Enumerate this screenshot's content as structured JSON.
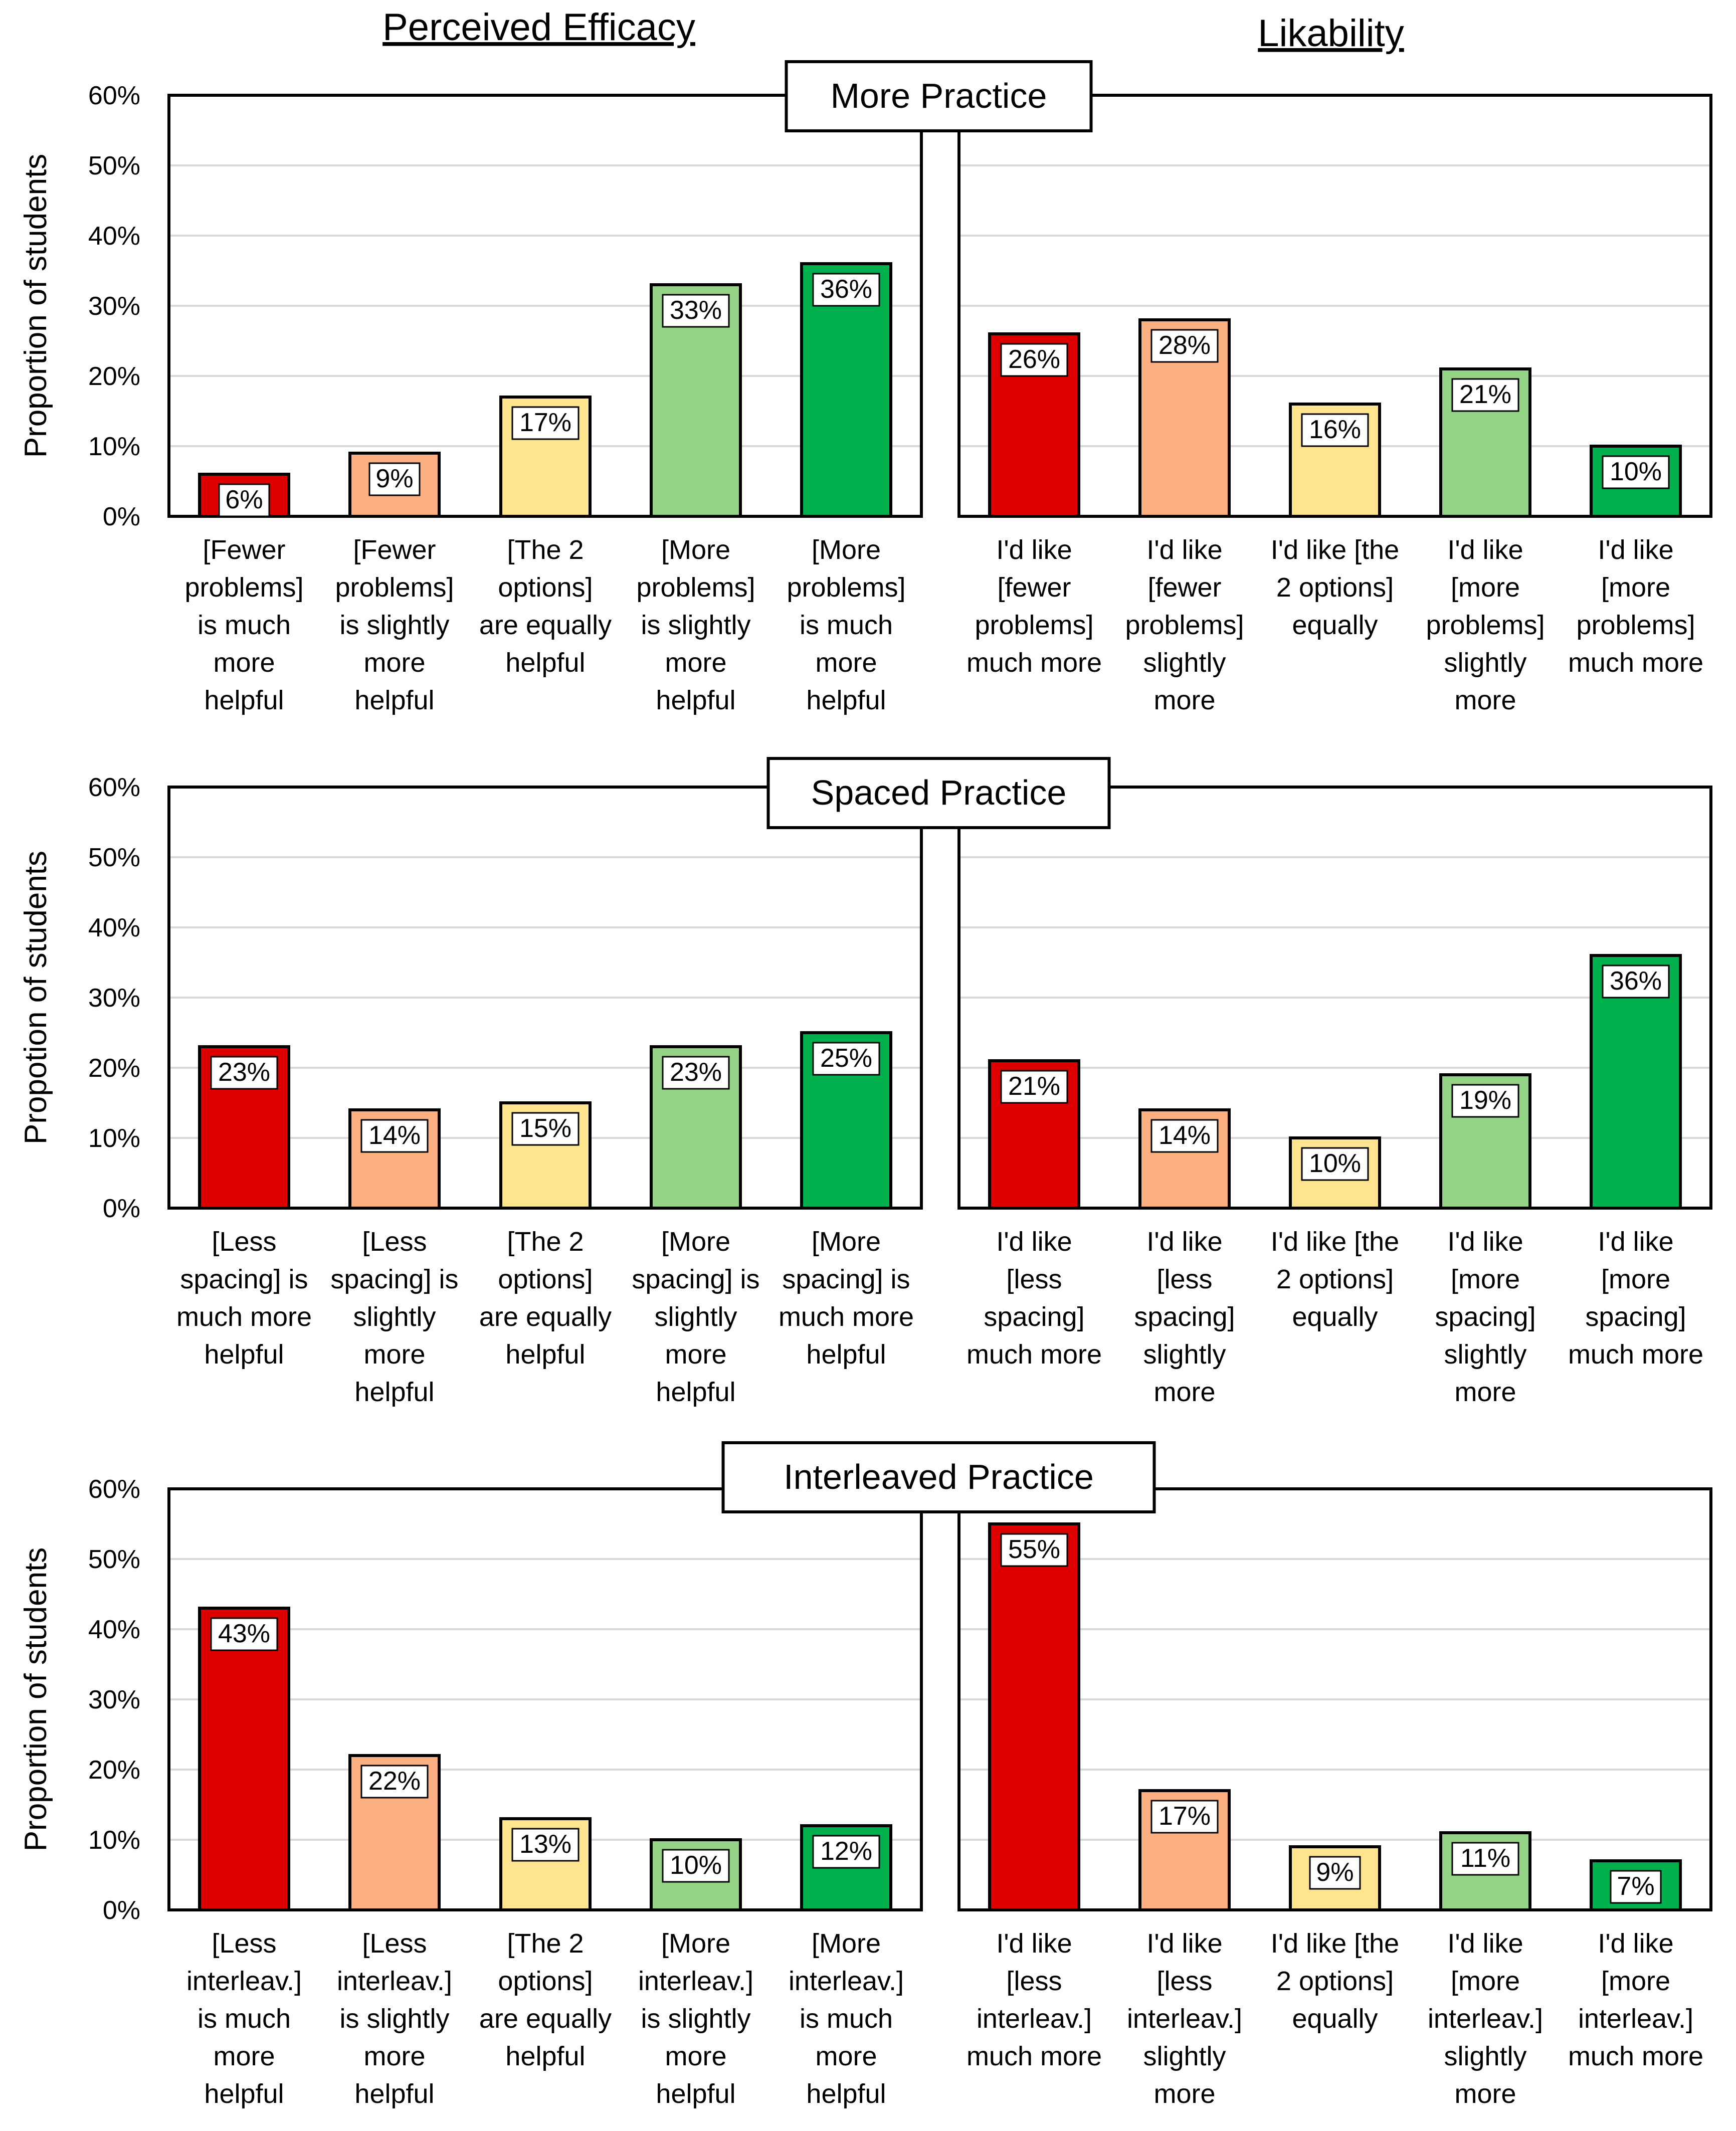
{
  "column_headers": {
    "left": "Perceived Efficacy",
    "right": "Likability"
  },
  "colors": {
    "bars": [
      "#DE0000",
      "#FCB081",
      "#FFE48F",
      "#95D387",
      "#00B04D"
    ],
    "grid": "#D9D9D9",
    "frame": "#000000"
  },
  "chart_data": [
    {
      "type": "bar",
      "panel_title": "More Practice",
      "ylabel": "Proportion of students",
      "ylim": [
        0,
        60
      ],
      "yticks": [
        "0%",
        "10%",
        "20%",
        "30%",
        "40%",
        "50%",
        "60%"
      ],
      "grid": true,
      "efficacy": {
        "categories": [
          [
            "[Fewer",
            "problems]",
            "is much",
            "more",
            "helpful"
          ],
          [
            "[Fewer",
            "problems]",
            "is slightly",
            "more",
            "helpful"
          ],
          [
            "[The 2",
            "options]",
            "are equally",
            "helpful"
          ],
          [
            "[More",
            "problems]",
            "is slightly",
            "more",
            "helpful"
          ],
          [
            "[More",
            "problems]",
            "is much",
            "more",
            "helpful"
          ]
        ],
        "values": [
          6,
          9,
          17,
          33,
          36
        ],
        "labels": [
          "6%",
          "9%",
          "17%",
          "33%",
          "36%"
        ]
      },
      "likability": {
        "categories": [
          [
            "I'd like",
            "[fewer",
            "problems]",
            "much more"
          ],
          [
            "I'd like",
            "[fewer",
            "problems]",
            "slightly",
            "more"
          ],
          [
            "I'd like [the",
            "2 options]",
            "equally"
          ],
          [
            "I'd like",
            "[more",
            "problems]",
            "slightly",
            "more"
          ],
          [
            "I'd like",
            "[more",
            "problems]",
            "much more"
          ]
        ],
        "values": [
          26,
          28,
          16,
          21,
          10
        ],
        "labels": [
          "26%",
          "28%",
          "16%",
          "21%",
          "10%"
        ]
      }
    },
    {
      "type": "bar",
      "panel_title": "Spaced Practice",
      "ylabel": "Propotion of students",
      "ylim": [
        0,
        60
      ],
      "yticks": [
        "0%",
        "10%",
        "20%",
        "30%",
        "40%",
        "50%",
        "60%"
      ],
      "grid": true,
      "efficacy": {
        "categories": [
          [
            "[Less",
            "spacing] is",
            "much more",
            "helpful"
          ],
          [
            "[Less",
            "spacing] is",
            "slightly",
            "more",
            "helpful"
          ],
          [
            "[The 2",
            "options]",
            "are equally",
            "helpful"
          ],
          [
            "[More",
            "spacing] is",
            "slightly",
            "more",
            "helpful"
          ],
          [
            "[More",
            "spacing] is",
            "much more",
            "helpful"
          ]
        ],
        "values": [
          23,
          14,
          15,
          23,
          25
        ],
        "labels": [
          "23%",
          "14%",
          "15%",
          "23%",
          "25%"
        ]
      },
      "likability": {
        "categories": [
          [
            "I'd like",
            "[less",
            "spacing]",
            "much more"
          ],
          [
            "I'd like",
            "[less",
            "spacing]",
            "slightly",
            "more"
          ],
          [
            "I'd like [the",
            "2 options]",
            "equally"
          ],
          [
            "I'd like",
            "[more",
            "spacing]",
            "slightly",
            "more"
          ],
          [
            "I'd like",
            "[more",
            "spacing]",
            "much more"
          ]
        ],
        "values": [
          21,
          14,
          10,
          19,
          36
        ],
        "labels": [
          "21%",
          "14%",
          "10%",
          "19%",
          "36%"
        ]
      }
    },
    {
      "type": "bar",
      "panel_title": "Interleaved Practice",
      "ylabel": "Proportion of students",
      "ylim": [
        0,
        60
      ],
      "yticks": [
        "0%",
        "10%",
        "20%",
        "30%",
        "40%",
        "50%",
        "60%"
      ],
      "grid": true,
      "efficacy": {
        "categories": [
          [
            "[Less",
            "interleav.]",
            "is much",
            "more",
            "helpful"
          ],
          [
            "[Less",
            "interleav.]",
            "is slightly",
            "more",
            "helpful"
          ],
          [
            "[The 2",
            "options]",
            "are equally",
            "helpful"
          ],
          [
            "[More",
            "interleav.]",
            "is slightly",
            "more",
            "helpful"
          ],
          [
            "[More",
            "interleav.]",
            "is much",
            "more",
            "helpful"
          ]
        ],
        "values": [
          43,
          22,
          13,
          10,
          12
        ],
        "labels": [
          "43%",
          "22%",
          "13%",
          "10%",
          "12%"
        ]
      },
      "likability": {
        "categories": [
          [
            "I'd like",
            "[less",
            "interleav.]",
            "much more"
          ],
          [
            "I'd like",
            "[less",
            "interleav.]",
            "slightly",
            "more"
          ],
          [
            "I'd like [the",
            "2 options]",
            "equally"
          ],
          [
            "I'd like",
            "[more",
            "interleav.]",
            "slightly",
            "more"
          ],
          [
            "I'd like",
            "[more",
            "interleav.]",
            "much more"
          ]
        ],
        "values": [
          55,
          17,
          9,
          11,
          7
        ],
        "labels": [
          "55%",
          "17%",
          "9%",
          "11%",
          "7%"
        ]
      }
    }
  ]
}
